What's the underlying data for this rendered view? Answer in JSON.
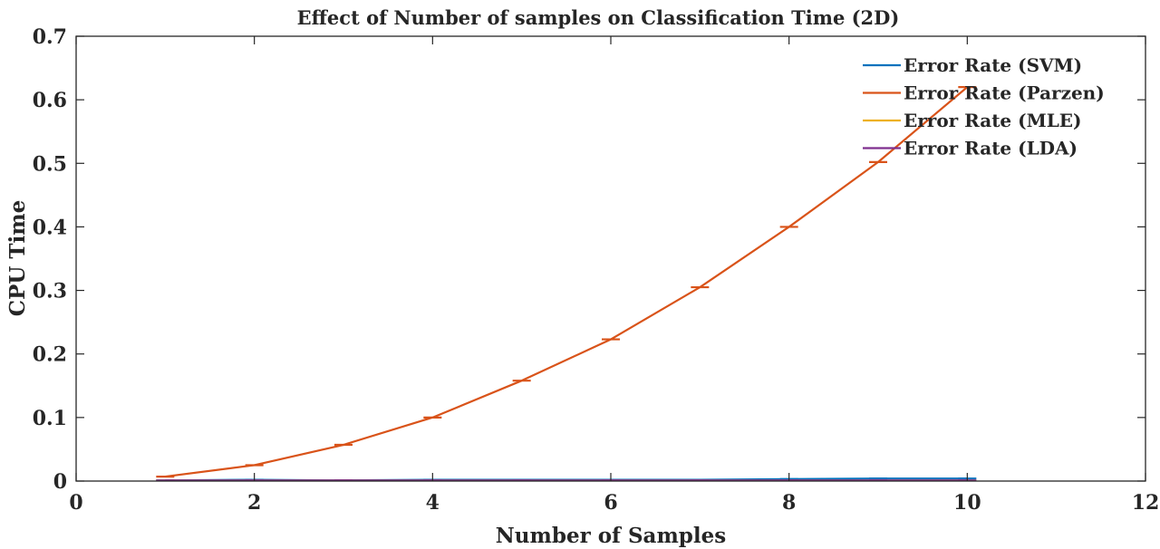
{
  "chart_data": {
    "type": "line",
    "title": "Effect of Number of samples on Classification Time (2D)",
    "xlabel": "Number of Samples",
    "ylabel": "CPU Time",
    "xlim": [
      0,
      12
    ],
    "ylim": [
      0,
      0.7
    ],
    "xticks": [
      "0",
      "2",
      "4",
      "6",
      "8",
      "10",
      "12"
    ],
    "yticks": [
      "0",
      "0.1",
      "0.2",
      "0.3",
      "0.4",
      "0.5",
      "0.6",
      "0.7"
    ],
    "xtick_values": [
      0,
      2,
      4,
      6,
      8,
      10,
      12
    ],
    "ytick_values": [
      0,
      0.1,
      0.2,
      0.3,
      0.4,
      0.5,
      0.6,
      0.7
    ],
    "grid": false,
    "legend_position": "top-right",
    "x": [
      1,
      2,
      3,
      4,
      5,
      6,
      7,
      8,
      9,
      10
    ],
    "series": [
      {
        "name": "Error Rate (SVM)",
        "color": "#0072BD",
        "values": [
          0.001,
          0.002,
          0.001,
          0.002,
          0.002,
          0.002,
          0.002,
          0.003,
          0.004,
          0.004
        ]
      },
      {
        "name": "Error Rate (Parzen)",
        "color": "#D95319",
        "values": [
          0.007,
          0.025,
          0.057,
          0.1,
          0.158,
          0.223,
          0.305,
          0.4,
          0.502,
          0.62
        ]
      },
      {
        "name": "Error Rate (MLE)",
        "color": "#EDB120",
        "values": [
          0.001,
          0.001,
          0.001,
          0.001,
          0.001,
          0.001,
          0.001,
          0.001,
          0.001,
          0.001
        ]
      },
      {
        "name": "Error Rate (LDA)",
        "color": "#7E2F8E",
        "values": [
          0.001,
          0.001,
          0.001,
          0.001,
          0.001,
          0.001,
          0.001,
          0.001,
          0.001,
          0.001
        ]
      }
    ]
  }
}
